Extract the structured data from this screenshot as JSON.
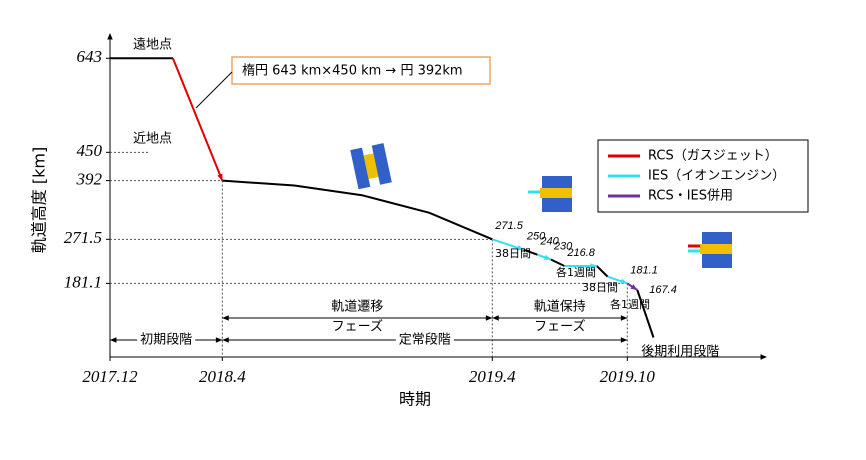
{
  "chart_data": {
    "type": "line",
    "y_label": "軌道高度 [km]",
    "x_label": "時期",
    "xlim": [
      2017.917,
      2020.343
    ],
    "xticks": [
      {
        "value": 2017.917,
        "label": "2017.12"
      },
      {
        "value": 2018.333,
        "label": "2018.4"
      },
      {
        "value": 2019.333,
        "label": "2019.4"
      },
      {
        "value": 2019.833,
        "label": "2019.10"
      }
    ],
    "ylim": [
      30,
      660
    ],
    "yticks": [
      643,
      450,
      392,
      271.5,
      181.1
    ],
    "series": [
      {
        "color": "#000000",
        "x": [
          2017.917,
          2018.15,
          null,
          2018.333,
          2018.6,
          2018.85,
          2019.1,
          2019.333,
          null,
          2019.45,
          2019.5,
          null,
          2019.55,
          2019.6,
          null,
          2019.72,
          2019.76,
          null,
          2019.87,
          2019.93
        ],
        "values": [
          643,
          643,
          null,
          392,
          382,
          362,
          326,
          271.5,
          null,
          250,
          240,
          null,
          230,
          216.8,
          null,
          216.8,
          195,
          null,
          167.4,
          70
        ]
      },
      {
        "name": "RCS（ガスジェット）",
        "color": "#e00000",
        "x": [
          2018.15,
          2018.333
        ],
        "values": [
          643,
          392
        ]
      },
      {
        "name": "IES（イオンエンジン）",
        "color": "#33e0f0",
        "x": [
          2019.333,
          2019.45,
          null,
          2019.5,
          2019.55,
          null,
          2019.6,
          2019.72,
          null,
          2019.76,
          2019.833
        ],
        "values": [
          271.5,
          250,
          null,
          240,
          230,
          null,
          216.8,
          216.8,
          null,
          195,
          181.1
        ]
      },
      {
        "name": "RCS・IES併用",
        "color": "#7030a0",
        "x": [
          2019.833,
          2019.87
        ],
        "values": [
          181.1,
          167.4
        ]
      }
    ],
    "data_labels": {
      "x": [
        2019.333,
        2019.45,
        2019.5,
        2019.55,
        2019.6,
        2019.833,
        2019.87
      ],
      "values": [
        271.5,
        250,
        240,
        230,
        216.8,
        181.1,
        167.4
      ]
    },
    "annotations": {
      "apogee": "遠地点",
      "perigee": "近地点",
      "orbit_change": "楕円 643 km×450 km → 円 392km",
      "durations": [
        "38日間",
        "各1週間",
        "38日間",
        "各1週間"
      ]
    },
    "subphases": [
      [
        "軌道遷移",
        "フェーズ"
      ],
      [
        "軌道保持",
        "フェーズ"
      ]
    ],
    "phases": [
      "初期段階",
      "定常段階",
      "後期利用段階"
    ]
  }
}
